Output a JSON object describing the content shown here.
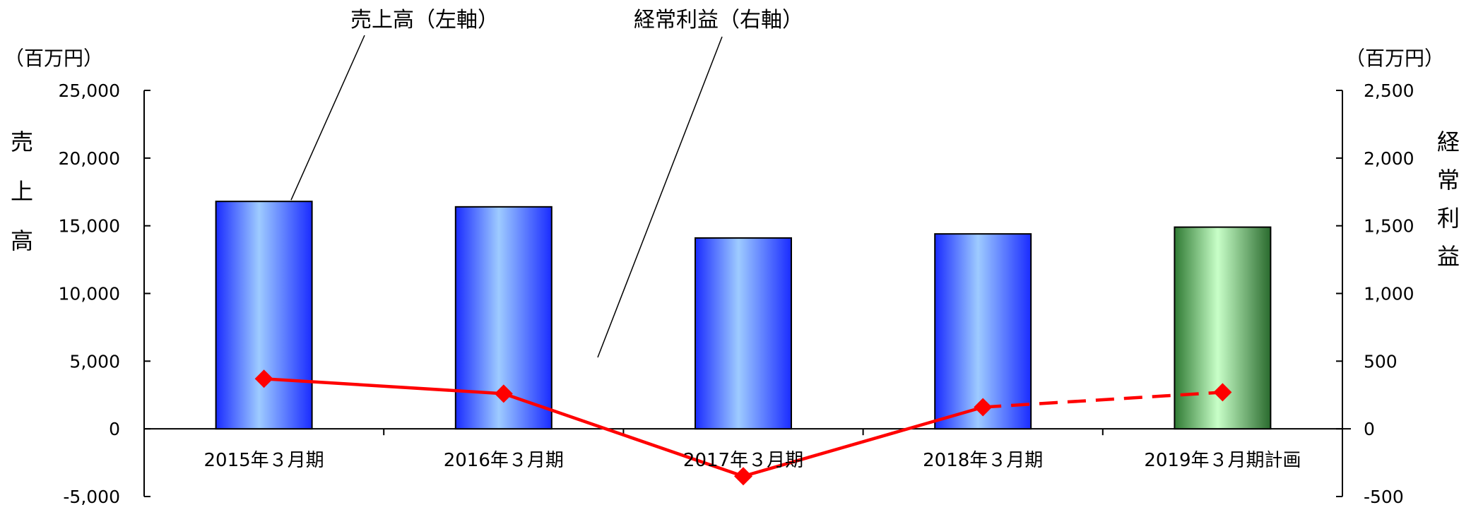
{
  "chart_data": {
    "type": "bar",
    "categories": [
      "2015年３月期",
      "2016年３月期",
      "2017年３月期",
      "2018年３月期",
      "2019年３月期計画"
    ],
    "series": [
      {
        "name": "売上高（左軸）",
        "type": "bar",
        "axis": "left",
        "values": [
          16800,
          16400,
          14100,
          14400,
          14900
        ],
        "colors": [
          "#3a55ff",
          "#3a55ff",
          "#3a55ff",
          "#3a55ff",
          "#3f9a45"
        ]
      },
      {
        "name": "経常利益（右軸）",
        "type": "line",
        "axis": "right",
        "values": [
          370,
          260,
          -350,
          160,
          270
        ],
        "color": "#ff0000",
        "dashed_last_segment": true
      }
    ],
    "left_axis": {
      "unit": "（百万円）",
      "label": [
        "売",
        "上",
        "高"
      ],
      "ylim": [
        -5000,
        25000
      ],
      "ticks": [
        "-5,000",
        "0",
        "5,000",
        "10,000",
        "15,000",
        "20,000",
        "25,000"
      ],
      "tick_values": [
        -5000,
        0,
        5000,
        10000,
        15000,
        20000,
        25000
      ]
    },
    "right_axis": {
      "unit": "（百万円）",
      "label": [
        "経",
        "常",
        "利",
        "益"
      ],
      "ylim": [
        -500,
        2500
      ],
      "ticks": [
        "-500",
        "0",
        "500",
        "1,000",
        "1,500",
        "2,000",
        "2,500"
      ],
      "tick_values": [
        -500,
        0,
        500,
        1000,
        1500,
        2000,
        2500
      ],
      "negative_tick_color": "#ff0000"
    },
    "grid": false
  }
}
